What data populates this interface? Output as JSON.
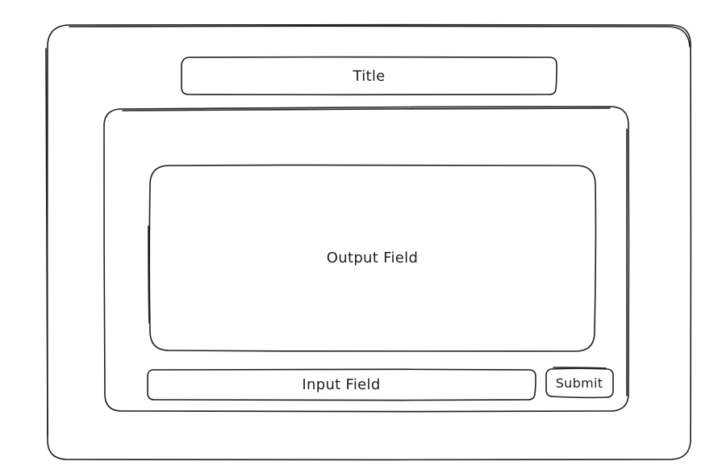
{
  "title": {
    "label": "Title"
  },
  "output": {
    "label": "Output Field"
  },
  "input": {
    "label": "Input Field"
  },
  "submit": {
    "label": "Submit"
  },
  "colors": {
    "stroke": "#1e1e1e",
    "background": "#ffffff"
  }
}
